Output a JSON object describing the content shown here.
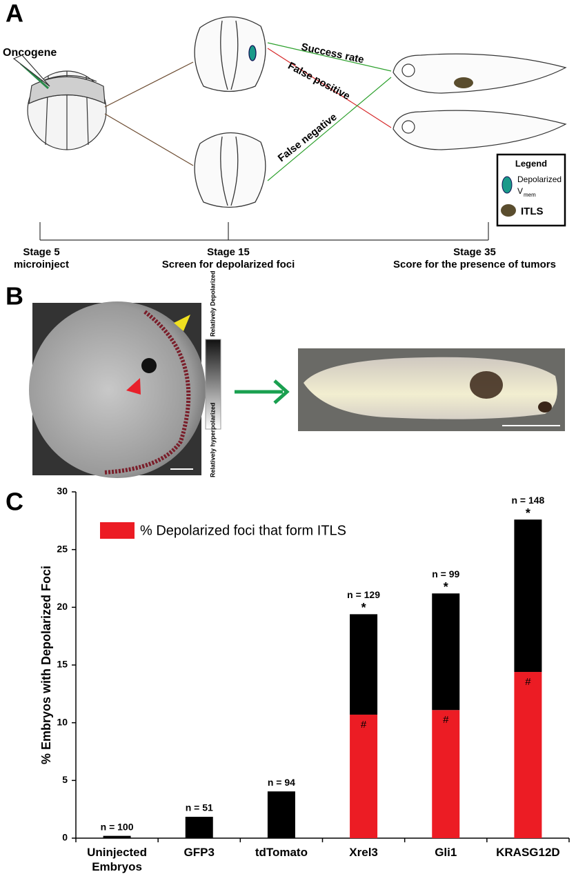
{
  "panel_a": {
    "letter": "A",
    "oncogene": "Oncogene",
    "success_rate": "Success rate",
    "false_positive": "False positive",
    "false_negative": "False negative",
    "legend": {
      "title": "Legend",
      "depolarized": "Depolarized",
      "vmem": "V",
      "vmem_sub": "mem",
      "itls": "ITLS"
    },
    "stages": [
      {
        "stage": "Stage 5",
        "desc": "microinject"
      },
      {
        "stage": "Stage 15",
        "desc": "Screen for depolarized foci"
      },
      {
        "stage": "Stage 35",
        "desc": "Score for the presence of tumors"
      }
    ]
  },
  "panel_b": {
    "letter": "B",
    "scale_top": "Relatively Depolarized",
    "scale_bottom": "Relatively hyperpolarized"
  },
  "panel_c": {
    "letter": "C"
  },
  "chart_data": {
    "type": "stacked-bar",
    "ylabel": "% Embryos with Depolarized Foci",
    "categories": [
      "Uninjected Embryos",
      "GFP3",
      "tdTomato",
      "Xrel3",
      "Gli1",
      "KRASG12D"
    ],
    "series": [
      {
        "name": "% Depolarized foci that form ITLS",
        "color": "#ec1c24",
        "values": [
          null,
          null,
          null,
          10.7,
          11.1,
          14.4
        ],
        "value_labels": [
          null,
          null,
          null,
          "#",
          "#",
          "#"
        ]
      },
      {
        "color": "#000000",
        "values": [
          0.2,
          1.85,
          4.05,
          8.7,
          10.1,
          13.2
        ]
      }
    ],
    "n_labels": [
      "n = 100",
      "n = 51",
      "n = 94",
      "n = 129",
      "n = 99",
      "n = 148"
    ],
    "significance": [
      null,
      null,
      null,
      "*",
      "*",
      "*"
    ],
    "ylim": [
      0,
      30
    ],
    "yticks": [
      0,
      5,
      10,
      15,
      20,
      25,
      30
    ],
    "legend": "top-left"
  }
}
